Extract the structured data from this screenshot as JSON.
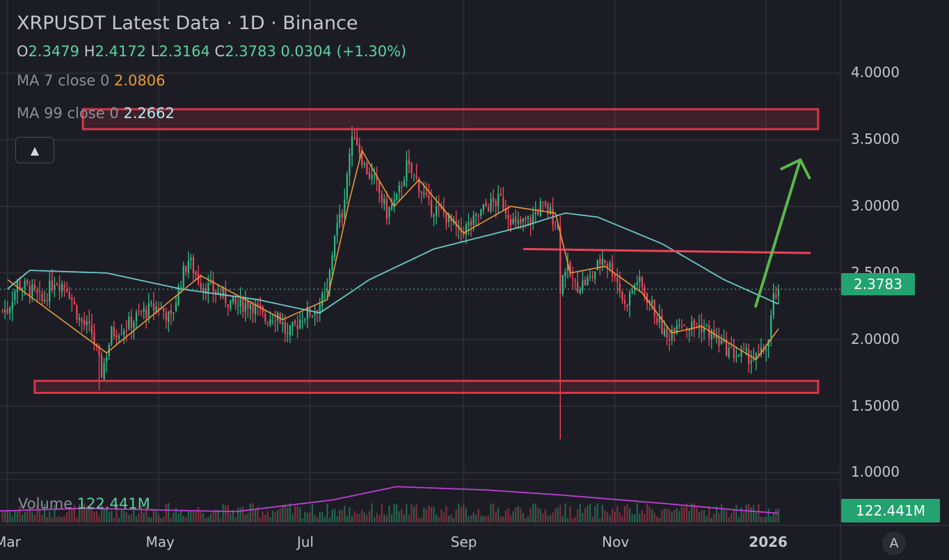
{
  "header": {
    "title": "XRPUSDT Latest Data · 1D · Binance",
    "ohlc": {
      "o_label": "O",
      "o_value": "2.3479",
      "h_label": "H",
      "h_value": "2.4172",
      "l_label": "L",
      "l_value": "2.3164",
      "c_label": "C",
      "c_value": "2.3783",
      "change": "0.0304 (+1.30%)"
    },
    "ma7_label": "MA 7 close 0",
    "ma7_value": "2.0806",
    "ma99_label": "MA 99 close 0",
    "ma99_value": "2.2662",
    "collapse_icon": "chevron-up-icon"
  },
  "volume": {
    "label": "Volume",
    "value": "122.441M",
    "badge": "122.441M"
  },
  "price_badge": "2.3783",
  "auto_scale_label": "A",
  "colors": {
    "background": "#1c1d24",
    "grid": "#2e3039",
    "up": "#2ebd85",
    "down": "#f6465d",
    "ma7": "#e89a3a",
    "ma99": "#6fc8c8",
    "volume_ma": "#c040d8",
    "zone": "#d9364a",
    "arrow": "#5cb84a"
  },
  "chart_data": {
    "type": "candlestick",
    "symbol": "XRPUSDT",
    "interval": "1D",
    "exchange": "Binance",
    "y_axis_ticks": [
      "4.0000",
      "3.5000",
      "3.0000",
      "2.5000",
      "2.0000",
      "1.5000",
      "1.0000"
    ],
    "x_axis_ticks": [
      "Mar",
      "May",
      "Jul",
      "Sep",
      "Nov",
      "2026"
    ],
    "ylim": [
      1.0,
      4.0
    ],
    "last_price": 2.3783,
    "close_series": [
      [
        "2025-03-01",
        2.22
      ],
      [
        "2025-03-05",
        2.42
      ],
      [
        "2025-03-10",
        2.38
      ],
      [
        "2025-03-15",
        2.28
      ],
      [
        "2025-03-20",
        2.45
      ],
      [
        "2025-03-25",
        2.4
      ],
      [
        "2025-03-30",
        2.15
      ],
      [
        "2025-04-04",
        2.05
      ],
      [
        "2025-04-08",
        1.75
      ],
      [
        "2025-04-12",
        2.05
      ],
      [
        "2025-04-18",
        2.1
      ],
      [
        "2025-04-24",
        2.2
      ],
      [
        "2025-05-01",
        2.25
      ],
      [
        "2025-05-06",
        2.15
      ],
      [
        "2025-05-10",
        2.45
      ],
      [
        "2025-05-13",
        2.6
      ],
      [
        "2025-05-18",
        2.42
      ],
      [
        "2025-05-25",
        2.35
      ],
      [
        "2025-06-01",
        2.25
      ],
      [
        "2025-06-07",
        2.28
      ],
      [
        "2025-06-13",
        2.15
      ],
      [
        "2025-06-18",
        2.2
      ],
      [
        "2025-06-22",
        2.02
      ],
      [
        "2025-06-28",
        2.18
      ],
      [
        "2025-07-03",
        2.22
      ],
      [
        "2025-07-08",
        2.35
      ],
      [
        "2025-07-11",
        2.8
      ],
      [
        "2025-07-14",
        2.95
      ],
      [
        "2025-07-17",
        3.4
      ],
      [
        "2025-07-19",
        3.55
      ],
      [
        "2025-07-23",
        3.3
      ],
      [
        "2025-07-28",
        3.15
      ],
      [
        "2025-08-01",
        2.95
      ],
      [
        "2025-08-05",
        3.05
      ],
      [
        "2025-08-09",
        3.3
      ],
      [
        "2025-08-13",
        3.2
      ],
      [
        "2025-08-18",
        3.0
      ],
      [
        "2025-08-24",
        2.95
      ],
      [
        "2025-08-30",
        2.8
      ],
      [
        "2025-09-05",
        2.88
      ],
      [
        "2025-09-10",
        3.0
      ],
      [
        "2025-09-16",
        3.05
      ],
      [
        "2025-09-22",
        2.85
      ],
      [
        "2025-09-28",
        2.9
      ],
      [
        "2025-10-02",
        3.0
      ],
      [
        "2025-10-06",
        2.95
      ],
      [
        "2025-10-09",
        2.85
      ],
      [
        "2025-10-10",
        2.4
      ],
      [
        "2025-10-12",
        2.55
      ],
      [
        "2025-10-16",
        2.4
      ],
      [
        "2025-10-22",
        2.45
      ],
      [
        "2025-10-27",
        2.62
      ],
      [
        "2025-11-01",
        2.5
      ],
      [
        "2025-11-05",
        2.25
      ],
      [
        "2025-11-10",
        2.45
      ],
      [
        "2025-11-16",
        2.25
      ],
      [
        "2025-11-22",
        2.0
      ],
      [
        "2025-11-26",
        2.15
      ],
      [
        "2025-12-01",
        2.1
      ],
      [
        "2025-12-06",
        2.1
      ],
      [
        "2025-12-12",
        2.0
      ],
      [
        "2025-12-18",
        1.9
      ],
      [
        "2025-12-23",
        1.88
      ],
      [
        "2025-12-29",
        1.85
      ],
      [
        "2026-01-02",
        2.0
      ],
      [
        "2026-01-04",
        2.3
      ],
      [
        "2026-01-06",
        2.3783
      ]
    ],
    "ma7": [
      [
        "2025-03-01",
        2.45
      ],
      [
        "2025-04-10",
        1.9
      ],
      [
        "2025-05-01",
        2.22
      ],
      [
        "2025-05-18",
        2.48
      ],
      [
        "2025-06-20",
        2.15
      ],
      [
        "2025-07-08",
        2.3
      ],
      [
        "2025-07-17",
        3.05
      ],
      [
        "2025-07-22",
        3.42
      ],
      [
        "2025-08-04",
        3.0
      ],
      [
        "2025-08-14",
        3.2
      ],
      [
        "2025-09-01",
        2.8
      ],
      [
        "2025-09-20",
        3.0
      ],
      [
        "2025-10-08",
        2.95
      ],
      [
        "2025-10-14",
        2.5
      ],
      [
        "2025-10-28",
        2.55
      ],
      [
        "2025-11-12",
        2.35
      ],
      [
        "2025-11-24",
        2.05
      ],
      [
        "2025-12-06",
        2.1
      ],
      [
        "2025-12-28",
        1.85
      ],
      [
        "2026-01-06",
        2.0806
      ]
    ],
    "ma99": [
      [
        "2025-03-01",
        2.38
      ],
      [
        "2025-03-10",
        2.52
      ],
      [
        "2025-04-10",
        2.5
      ],
      [
        "2025-05-10",
        2.38
      ],
      [
        "2025-06-10",
        2.3
      ],
      [
        "2025-07-05",
        2.2
      ],
      [
        "2025-07-25",
        2.45
      ],
      [
        "2025-08-20",
        2.68
      ],
      [
        "2025-09-25",
        2.85
      ],
      [
        "2025-10-12",
        2.95
      ],
      [
        "2025-10-25",
        2.92
      ],
      [
        "2025-11-20",
        2.72
      ],
      [
        "2025-12-15",
        2.45
      ],
      [
        "2026-01-06",
        2.2662
      ]
    ],
    "annotations": {
      "resistance_zone": [
        3.58,
        3.73
      ],
      "support_zone": [
        1.6,
        1.69
      ],
      "horizontal_line": 2.65,
      "projection_arrow": {
        "from": [
          "2026-01-01",
          2.25
        ],
        "to": [
          "2026-01-12",
          3.35
        ]
      }
    },
    "volume": {
      "last": "122.441M"
    }
  }
}
